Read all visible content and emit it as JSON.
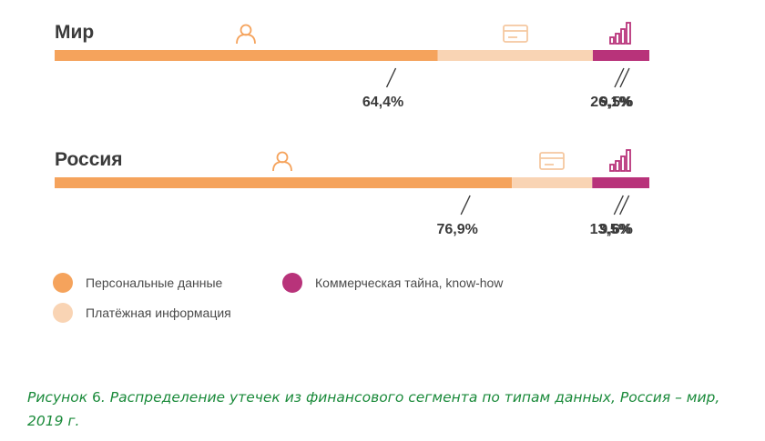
{
  "chart_data": {
    "type": "bar",
    "stacked": true,
    "orientation": "horizontal",
    "categories": [
      "Мир",
      "Россия"
    ],
    "series": [
      {
        "name": "Персональные данные",
        "values": [
          64.4,
          76.9
        ],
        "labels": [
          "64,4%",
          "76,9%"
        ],
        "color": "#f5a35c",
        "icon": "person-icon"
      },
      {
        "name": "Платёжная информация",
        "values": [
          26.1,
          13.5
        ],
        "labels": [
          "26,1%",
          "13,5%"
        ],
        "color": "#f9d4b4",
        "icon": "credit-card-icon"
      },
      {
        "name": "Коммерческая тайна, know-how",
        "values": [
          9.5,
          9.6
        ],
        "labels": [
          "9,5%",
          "9,6%"
        ],
        "color": "#b8337a",
        "icon": "bar-chart-icon"
      }
    ],
    "xlim": [
      0,
      100
    ]
  },
  "legend": {
    "personal": "Персональные данные",
    "payment": "Платёжная информация",
    "commercial": "Коммерческая тайна, know-how"
  },
  "caption": {
    "prefix": "Рисунок ",
    "number": "6",
    "text": ". Распределение утечек из финансового сегмента по типам данных, Россия – мир, 2019 г."
  },
  "colors": {
    "personal": "#f5a35c",
    "payment": "#f9d4b4",
    "commercial": "#b8337a",
    "icon_personal": "#f5a35c",
    "icon_payment": "#f5c8a0",
    "icon_commercial": "#b8337a",
    "caption": "#1a8a3a"
  }
}
